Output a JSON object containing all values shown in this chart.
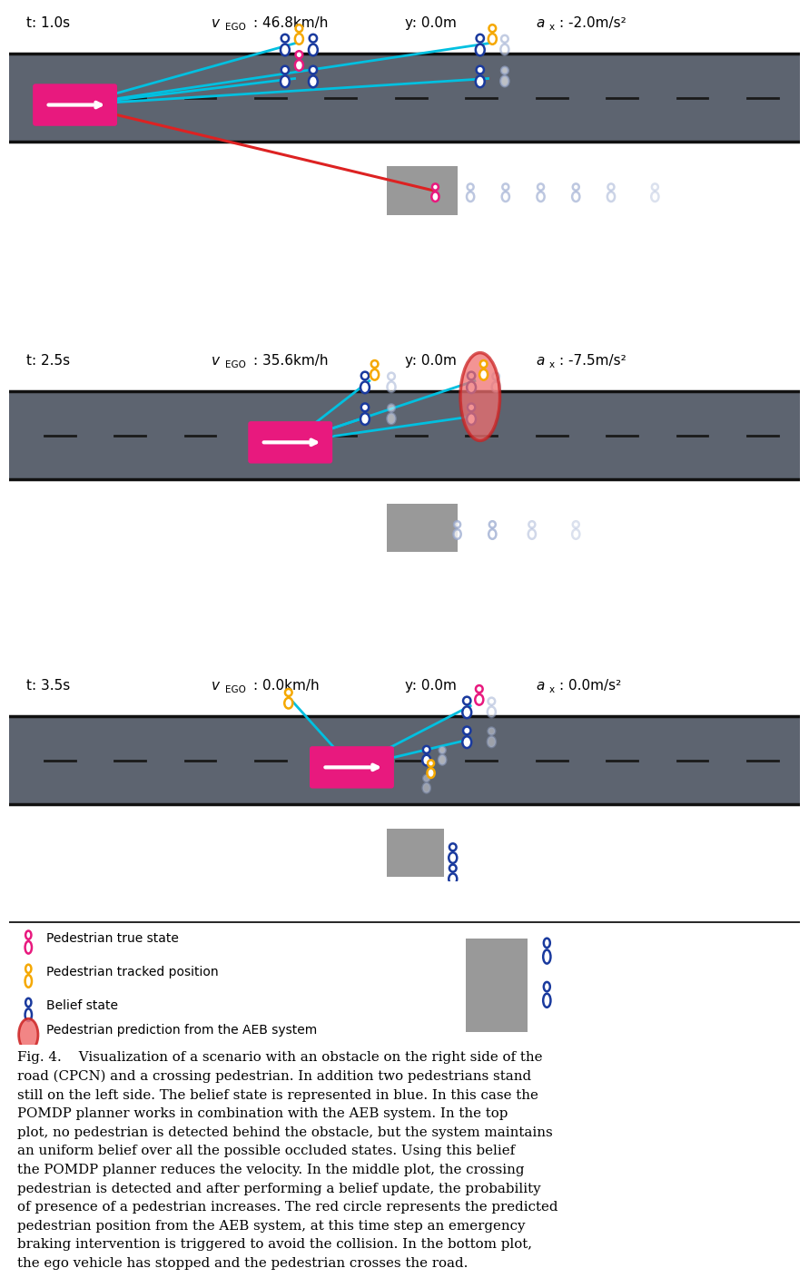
{
  "bg_color": "#ffffff",
  "road_color": "#5d6470",
  "road_border_color": "#111111",
  "ego_color": "#e8197e",
  "belief_color": "#1a3a9e",
  "true_color": "#e8197e",
  "tracked_color": "#f5a800",
  "ghost_color": "#9aaad0",
  "aeb_fill": "#f07070",
  "aeb_edge": "#cc2222",
  "cyan": "#00c0e0",
  "red_line": "#dd2222",
  "panels": [
    {
      "t": "t: 1.0s",
      "v_val": "46.8km/h",
      "y_val": "y: 0.0m",
      "a_val": "-2.0m/s²"
    },
    {
      "t": "t: 2.5s",
      "v_val": "35.6km/h",
      "y_val": "y: 0.0m",
      "a_val": "-7.5m/s²"
    },
    {
      "t": "t: 3.5s",
      "v_val": "0.0km/h",
      "y_val": "y: 0.0m",
      "a_val": "0.0m/s²"
    }
  ],
  "caption": "Fig. 4.    Visualization of a scenario with an obstacle on the right side of the\nroad (CPCN) and a crossing pedestrian. In addition two pedestrians stand\nstill on the left side. The belief state is represented in blue. In this case the\nPOMDP planner works in combination with the AEB system. In the top\nplot, no pedestrian is detected behind the obstacle, but the system maintains\nan uniform belief over all the possible occluded states. Using this belief\nthe POMDP planner reduces the velocity. In the middle plot, the crossing\npedestrian is detected and after performing a belief update, the probability\nof presence of a pedestrian increases. The red circle represents the predicted\npedestrian position from the AEB system, at this time step an emergency\nbraking intervention is triggered to avoid the collision. In the bottom plot,\nthe ego vehicle has stopped and the pedestrian crosses the road."
}
